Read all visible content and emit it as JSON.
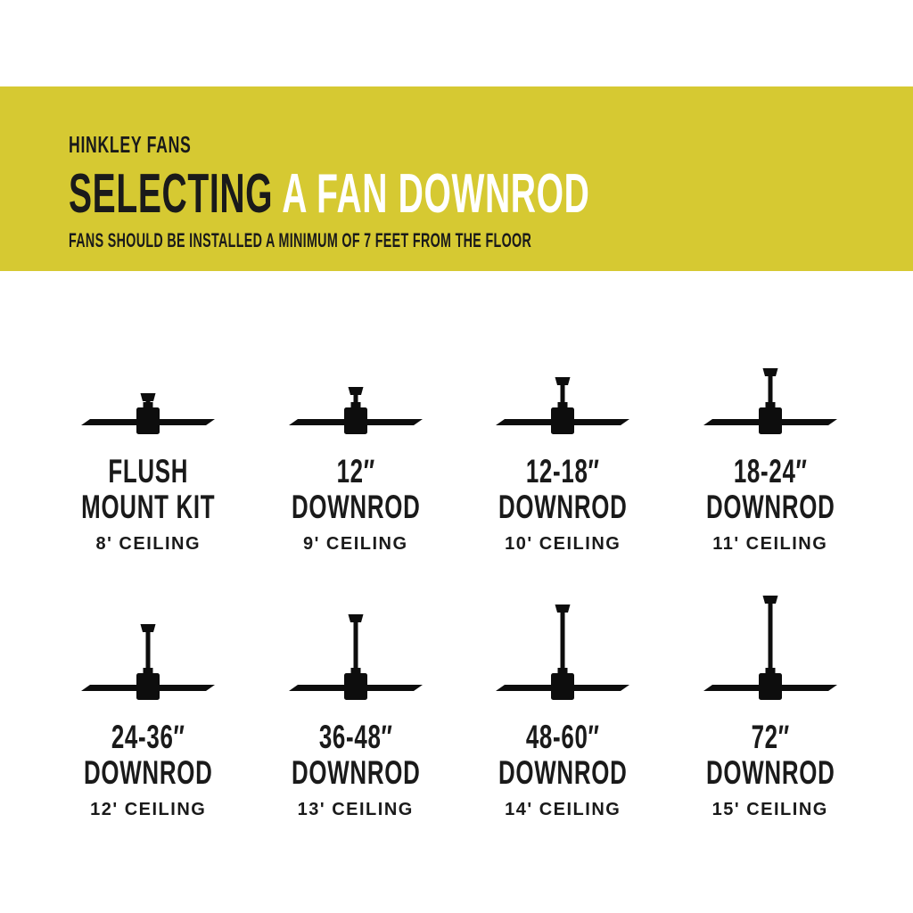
{
  "colors": {
    "banner_bg": "#d6c932",
    "text_dark": "#1a1a1a",
    "title_light": "#ffffff",
    "icon_black": "#0d0d0d"
  },
  "header": {
    "brand": "HINKLEY FANS",
    "title_dark": "SELECTING",
    "title_light": "A FAN DOWNROD",
    "subtitle": "FANS SHOULD BE INSTALLED A MINIMUM OF 7 FEET FROM THE FLOOR"
  },
  "cards": [
    {
      "icon": "ceiling-fan-flush-mount-icon",
      "rod_length": 7,
      "line1": "FLUSH",
      "line2": "MOUNT KIT",
      "ceiling": "8' CEILING"
    },
    {
      "icon": "ceiling-fan-downrod-icon",
      "rod_length": 14,
      "line1": "12″",
      "line2": "DOWNROD",
      "ceiling": "9' CEILING"
    },
    {
      "icon": "ceiling-fan-downrod-icon",
      "rod_length": 25,
      "line1": "12-18″",
      "line2": "DOWNROD",
      "ceiling": "10' CEILING"
    },
    {
      "icon": "ceiling-fan-downrod-icon",
      "rod_length": 35,
      "line1": "18-24″",
      "line2": "DOWNROD",
      "ceiling": "11' CEILING"
    },
    {
      "icon": "ceiling-fan-downrod-icon",
      "rod_length": 46,
      "line1": "24-36″",
      "line2": "DOWNROD",
      "ceiling": "12' CEILING"
    },
    {
      "icon": "ceiling-fan-downrod-icon",
      "rod_length": 57,
      "line1": "36-48″",
      "line2": "DOWNROD",
      "ceiling": "13' CEILING"
    },
    {
      "icon": "ceiling-fan-downrod-icon",
      "rod_length": 68,
      "line1": "48-60″",
      "line2": "DOWNROD",
      "ceiling": "14' CEILING"
    },
    {
      "icon": "ceiling-fan-downrod-icon",
      "rod_length": 78,
      "line1": "72″",
      "line2": "DOWNROD",
      "ceiling": "15' CEILING"
    }
  ]
}
